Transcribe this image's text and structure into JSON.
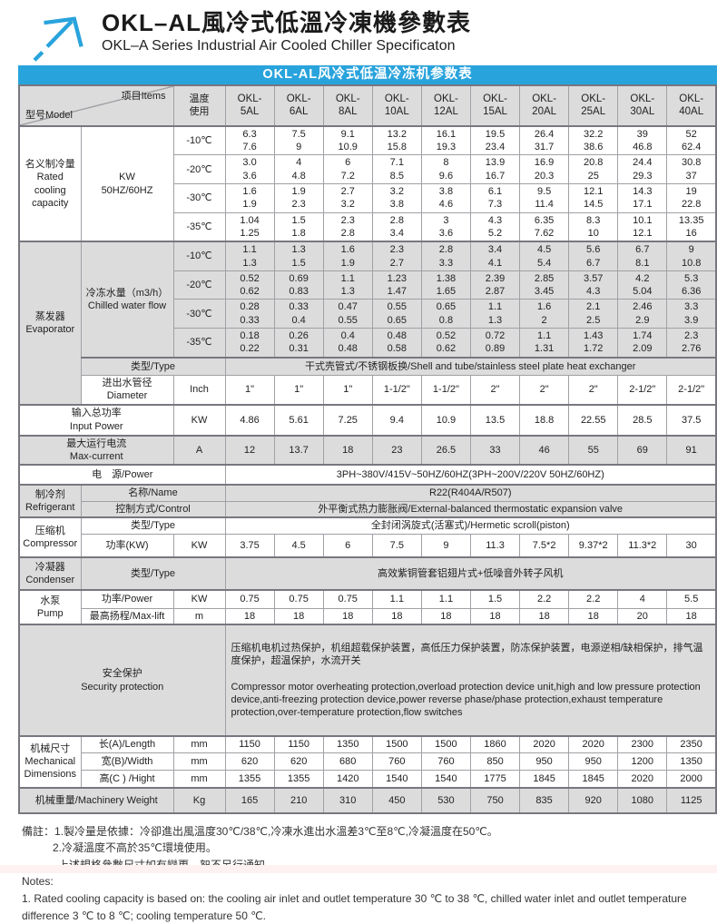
{
  "colors": {
    "accent": "#29a3dc",
    "row_gray": "#dcdcdc"
  },
  "page": {
    "title_zh": "OKL–AL風冷式低溫冷凍機參數表",
    "title_en": "OKL–A Series Industrial Air Cooled Chiller Specificaton",
    "banner": "OKL-AL风冷式低温冷冻机参数表"
  },
  "table": {
    "corner_model": "型号Model",
    "corner_items": "项目Items",
    "temp_header": "温度\n使用",
    "models": [
      "OKL-\n5AL",
      "OKL-\n6AL",
      "OKL-\n8AL",
      "OKL-\n10AL",
      "OKL-\n12AL",
      "OKL-\n15AL",
      "OKL-\n20AL",
      "OKL-\n25AL",
      "OKL-\n30AL",
      "OKL-\n40AL"
    ]
  },
  "capacity": {
    "section_label": "名义制冷量\nRated\ncooling\ncapacity",
    "unit": "KW\n50HZ/60HZ",
    "rows": [
      {
        "temp": "-10℃",
        "values": [
          "6.3\n7.6",
          "7.5\n9",
          "9.1\n10.9",
          "13.2\n15.8",
          "16.1\n19.3",
          "19.5\n23.4",
          "26.4\n31.7",
          "32.2\n38.6",
          "39\n46.8",
          "52\n62.4"
        ]
      },
      {
        "temp": "-20℃",
        "values": [
          "3.0\n3.6",
          "4\n4.8",
          "6\n7.2",
          "7.1\n8.5",
          "8\n9.6",
          "13.9\n16.7",
          "16.9\n20.3",
          "20.8\n25",
          "24.4\n29.3",
          "30.8\n37"
        ]
      },
      {
        "temp": "-30℃",
        "values": [
          "1.6\n1.9",
          "1.9\n2.3",
          "2.7\n3.2",
          "3.2\n3.8",
          "3.8\n4.6",
          "6.1\n7.3",
          "9.5\n11.4",
          "12.1\n14.5",
          "14.3\n17.1",
          "19\n22.8"
        ]
      },
      {
        "temp": "-35℃",
        "values": [
          "1.04\n1.25",
          "1.5\n1.8",
          "2.3\n2.8",
          "2.8\n3.4",
          "3\n3.6",
          "4.3\n5.2",
          "6.35\n7.62",
          "8.3\n10",
          "10.1\n12.1",
          "13.35\n16"
        ]
      }
    ]
  },
  "evaporator": {
    "section_label": "蒸发器\nEvaporator",
    "flow_label": "冷冻水量（m3/h）\nChilled water flow",
    "rows": [
      {
        "temp": "-10℃",
        "values": [
          "1.1\n1.3",
          "1.3\n1.5",
          "1.6\n1.9",
          "2.3\n2.7",
          "2.8\n3.3",
          "3.4\n4.1",
          "4.5\n5.4",
          "5.6\n6.7",
          "6.7\n8.1",
          "9\n10.8"
        ]
      },
      {
        "temp": "-20℃",
        "values": [
          "0.52\n0.62",
          "0.69\n0.83",
          "1.1\n1.3",
          "1.23\n1.47",
          "1.38\n1.65",
          "2.39\n2.87",
          "2.85\n3.45",
          "3.57\n4.3",
          "4.2\n5.04",
          "5.3\n6.36"
        ]
      },
      {
        "temp": "-30℃",
        "values": [
          "0.28\n0.33",
          "0.33\n0.4",
          "0.47\n0.55",
          "0.55\n0.65",
          "0.65\n0.8",
          "1.1\n1.3",
          "1.6\n2",
          "2.1\n2.5",
          "2.46\n2.9",
          "3.3\n3.9"
        ]
      },
      {
        "temp": "-35℃",
        "values": [
          "0.18\n0.22",
          "0.26\n0.31",
          "0.4\n0.48",
          "0.48\n0.58",
          "0.52\n0.62",
          "0.72\n0.89",
          "1.1\n1.31",
          "1.43\n1.72",
          "1.74\n2.09",
          "2.3\n2.76"
        ]
      }
    ],
    "type_label": "类型/Type",
    "type_value": "干式壳管式/不锈钢板换/Shell and tube/stainless steel plate heat exchanger",
    "diameter_label": "进出水管径\nDiameter",
    "diameter_unit": "Inch",
    "diameter_values": [
      "1\"",
      "1\"",
      "1\"",
      "1-1/2\"",
      "1-1/2\"",
      "2\"",
      "2\"",
      "2\"",
      "2-1/2\"",
      "2-1/2\""
    ]
  },
  "input_power": {
    "label": "输入总功率\nInput Power",
    "unit": "KW",
    "values": [
      "4.86",
      "5.61",
      "7.25",
      "9.4",
      "10.9",
      "13.5",
      "18.8",
      "22.55",
      "28.5",
      "37.5"
    ]
  },
  "max_current": {
    "label": "最大运行电流\nMax-current",
    "unit": "A",
    "values": [
      "12",
      "13.7",
      "18",
      "23",
      "26.5",
      "33",
      "46",
      "55",
      "69",
      "91"
    ]
  },
  "power_supply": {
    "label": "电　源/Power",
    "value": "3PH~380V/415V~50HZ/60HZ(3PH~200V/220V  50HZ/60HZ)"
  },
  "refrigerant": {
    "section_label": "制冷剂\nRefrigerant",
    "name_label": "名称/Name",
    "name_value": "R22(R404A/R507)",
    "control_label": "控制方式/Control",
    "control_value": "外平衡式热力膨胀阀/External-balanced thermostatic expansion valve"
  },
  "compressor": {
    "section_label": "压缩机\nCompressor",
    "type_label": "类型/Type",
    "type_value": "全封闭涡旋式(活塞式)/Hermetic scroll(piston)",
    "power_label": "功率(KW)",
    "power_unit": "KW",
    "power_values": [
      "3.75",
      "4.5",
      "6",
      "7.5",
      "9",
      "11.3",
      "7.5*2",
      "9.37*2",
      "11.3*2",
      "30"
    ]
  },
  "condenser": {
    "section_label": "冷凝器\nCondenser",
    "type_label": "类型/Type",
    "type_value": "高效紫铜管套铝翅片式+低噪音外转子风机"
  },
  "pump": {
    "section_label": "水泵\nPump",
    "power_label": "功率/Power",
    "power_unit": "KW",
    "power_values": [
      "0.75",
      "0.75",
      "0.75",
      "1.1",
      "1.1",
      "1.5",
      "2.2",
      "2.2",
      "4",
      "5.5"
    ],
    "lift_label": "最高扬程/Max-lift",
    "lift_unit": "m",
    "lift_values": [
      "18",
      "18",
      "18",
      "18",
      "18",
      "18",
      "18",
      "18",
      "20",
      "18"
    ]
  },
  "security": {
    "label": "安全保护\nSecurity protection",
    "text_zh": "压缩机电机过热保护，机组超载保护装置，高低压力保护装置，防冻保护装置，电源逆相/缺相保护，排气温度保护，超温保护，水流开关",
    "text_en": " Compressor motor overheating protection,overload protection device unit,high and low pressure protection device,anti-freezing protection device,power reverse phase/phase protection,exhaust temperature protection,over-temperature protection,flow switches"
  },
  "mechanical": {
    "section_label": "机械尺寸\nMechanical\nDimensions",
    "rows": [
      {
        "label": "长(A)/Length",
        "unit": "mm",
        "values": [
          "1150",
          "1150",
          "1350",
          "1500",
          "1500",
          "1860",
          "2020",
          "2020",
          "2300",
          "2350"
        ]
      },
      {
        "label": "宽(B)/Width",
        "unit": "mm",
        "values": [
          "620",
          "620",
          "680",
          "760",
          "760",
          "850",
          "950",
          "950",
          "1200",
          "1350"
        ]
      },
      {
        "label": "高(C ) /Hight",
        "unit": "mm",
        "values": [
          "1355",
          "1355",
          "1420",
          "1540",
          "1540",
          "1775",
          "1845",
          "1845",
          "2020",
          "2000"
        ]
      }
    ]
  },
  "weight": {
    "label": "机械重量/Machinery Weight",
    "unit": "Kg",
    "values": [
      "165",
      "210",
      "310",
      "450",
      "530",
      "750",
      "835",
      "920",
      "1080",
      "1125"
    ]
  },
  "notes": [
    "備註：1.製冷量是依據：冷卻進出風溫度30℃/38℃,冷凍水進出水溫差3℃至8℃,冷凝溫度在50℃。",
    "2.冷凝溫度不高於35℃環境使用。",
    "上述規格參數尺寸如有變更，恕不另行通知。",
    "Notes:",
    "1. Rated cooling capacity is based on: the cooling air inlet and outlet temperature 30 ℃ to 38 ℃, chilled water inlet and outlet temperature",
    "difference 3 ℃ to 8 ℃; cooling temperature 50 ℃."
  ]
}
